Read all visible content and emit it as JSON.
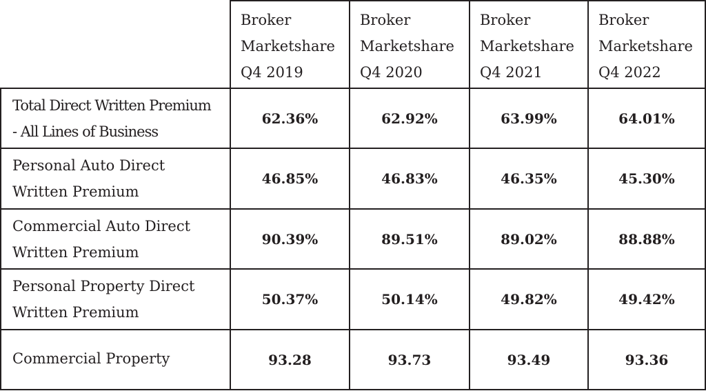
{
  "table": {
    "headers": [
      {
        "line1": "Broker",
        "line2": "Marketshare",
        "line3": "Q4 2019"
      },
      {
        "line1": "Broker",
        "line2": "Marketshare",
        "line3": "Q4 2020"
      },
      {
        "line1": "Broker",
        "line2": "Marketshare",
        "line3": "Q4 2021"
      },
      {
        "line1": "Broker",
        "line2": "Marketshare",
        "line3": "Q4 2022"
      }
    ],
    "rows": [
      {
        "label_line1": "Total Direct Written Premium",
        "label_line2": "- All Lines of Business",
        "values": [
          "62.36%",
          "62.92%",
          "63.99%",
          "64.01%"
        ]
      },
      {
        "label_line1": "Personal Auto Direct",
        "label_line2": "Written Premium",
        "values": [
          "46.85%",
          "46.83%",
          "46.35%",
          "45.30%"
        ]
      },
      {
        "label_line1": "Commercial Auto Direct",
        "label_line2": "Written Premium",
        "values": [
          "90.39%",
          "89.51%",
          "89.02%",
          "88.88%"
        ]
      },
      {
        "label_line1": "Personal Property Direct",
        "label_line2": "Written Premium",
        "values": [
          "50.37%",
          "50.14%",
          "49.82%",
          "49.42%"
        ]
      },
      {
        "label_line1": "Commercial Property",
        "label_line2": "",
        "values": [
          "93.28",
          "93.73",
          "93.49",
          "93.36"
        ]
      }
    ]
  }
}
